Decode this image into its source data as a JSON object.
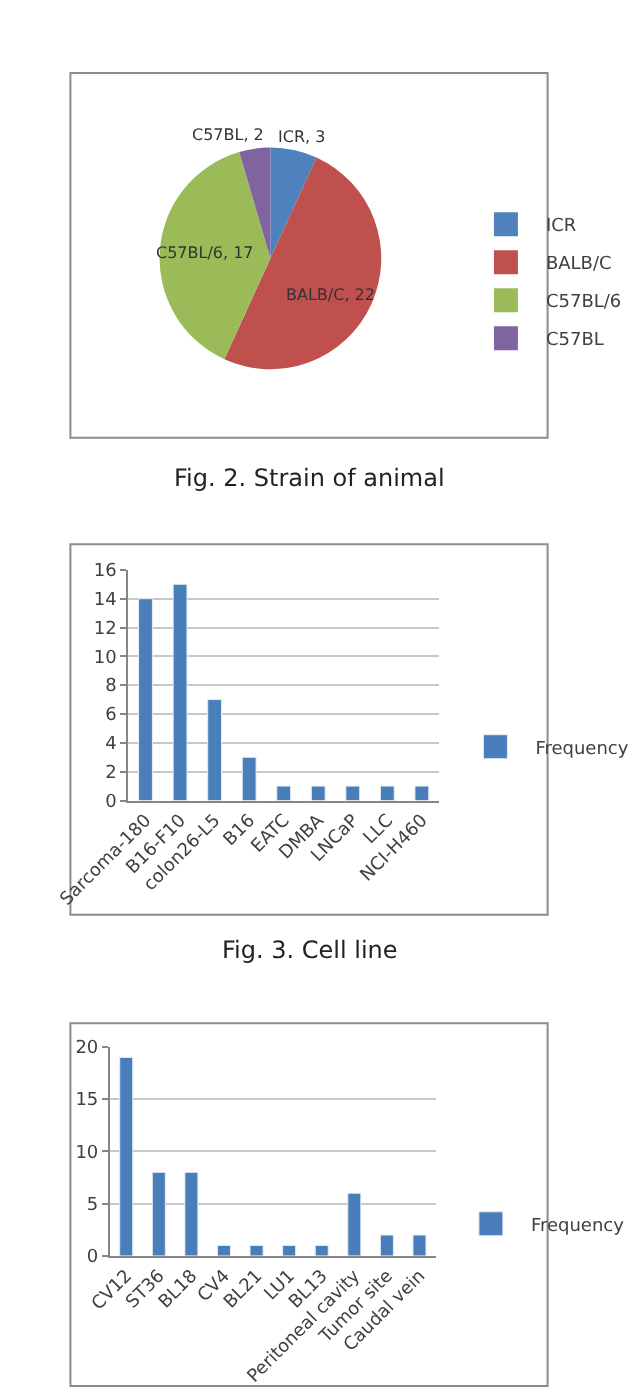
{
  "chart_data": [
    {
      "type": "pie",
      "categories": [
        "ICR",
        "BALB/C",
        "C57BL/6",
        "C57BL"
      ],
      "values": [
        3,
        22,
        17,
        2
      ],
      "colors": [
        "#4f81bd",
        "#c0504d",
        "#9bbb59",
        "#8064a2"
      ],
      "value_labels": [
        "ICR, 3",
        "BALB/C, 22",
        "C57BL/6, 17",
        "C57BL, 2"
      ],
      "legend": "right",
      "annotations": [
        "Fig. 2. Strain of animal"
      ]
    },
    {
      "type": "bar",
      "categories": [
        "Sarcoma-180",
        "B16-F10",
        "colon26-L5",
        "B16",
        "EATC",
        "DMBA",
        "LNCaP",
        "LLC",
        "NCI-H460"
      ],
      "series": [
        {
          "name": "Frequency",
          "color": "#4a7ebb",
          "values": [
            14,
            15,
            7,
            3,
            1,
            1,
            1,
            1,
            1
          ]
        }
      ],
      "ylim": [
        0,
        16
      ],
      "yticks": [
        0,
        2,
        4,
        6,
        8,
        10,
        12,
        14,
        16
      ],
      "grid": "y",
      "legend": "right",
      "annotations": [
        "Fig. 3. Cell line"
      ]
    },
    {
      "type": "bar",
      "categories": [
        "CV12",
        "ST36",
        "BL18",
        "CV4",
        "BL21",
        "LU1",
        "BL13",
        "Peritoneal cavity",
        "Tumor site",
        "Caudal vein"
      ],
      "series": [
        {
          "name": "Frequency",
          "color": "#4a7ebb",
          "values": [
            19,
            8,
            8,
            1,
            1,
            1,
            1,
            6,
            2,
            2
          ]
        }
      ],
      "ylim": [
        0,
        20
      ],
      "yticks": [
        0,
        5,
        10,
        15,
        20
      ],
      "grid": "y",
      "legend": "right"
    }
  ]
}
